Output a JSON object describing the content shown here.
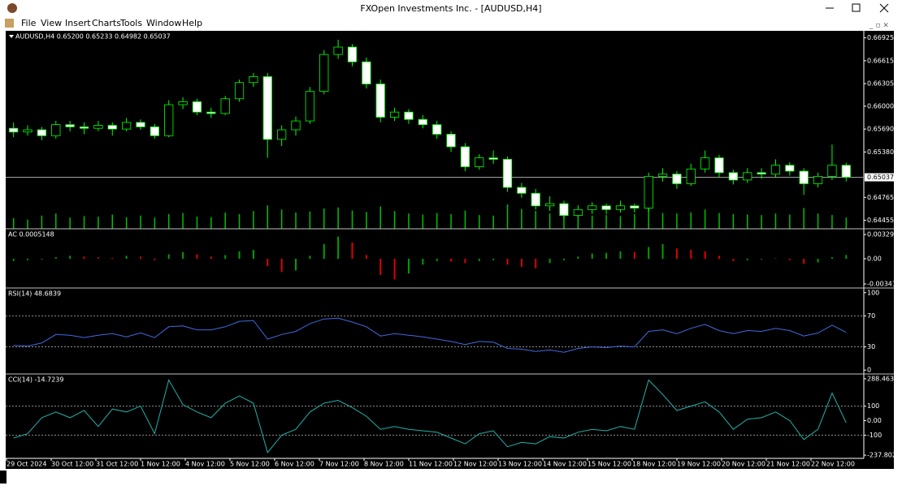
{
  "window": {
    "title": "FXOpen Investments Inc. - [AUDUSD,H4]"
  },
  "menu": [
    "File",
    "View",
    "Insert",
    "Charts",
    "Tools",
    "Window",
    "Help"
  ],
  "chart": {
    "header": "AUDUSD,H4  0.65200 0.65233 0.64982 0.65037",
    "ylim": [
      0.6434,
      0.6702
    ],
    "yticks": [
      0.66925,
      0.66615,
      0.66305,
      {
        "value": 0.66,
        "label": "0.66000"
      },
      {
        "value": 0.6569,
        "label": "0.65690"
      },
      {
        "value": 0.6538,
        "label": "0.65380"
      },
      0.64765,
      0.64455
    ],
    "current_price": 0.65037,
    "bull_color": "#000000",
    "bear_color": "#ffffff",
    "wick_color": "#00ff00",
    "volume_color": "#00c000",
    "candles": {
      "open": [
        0.657,
        0.6565,
        0.6568,
        0.656,
        0.6575,
        0.6572,
        0.657,
        0.6574,
        0.6569,
        0.6578,
        0.6572,
        0.656,
        0.6602,
        0.6606,
        0.6592,
        0.659,
        0.661,
        0.6632,
        0.664,
        0.6555,
        0.6568,
        0.658,
        0.662,
        0.667,
        0.668,
        0.666,
        0.663,
        0.6585,
        0.6592,
        0.6582,
        0.6575,
        0.6562,
        0.6545,
        0.6518,
        0.653,
        0.6528,
        0.649,
        0.6482,
        0.6465,
        0.6468,
        0.6452,
        0.646,
        0.6465,
        0.646,
        0.6465,
        0.6462,
        0.6505,
        0.6508,
        0.6495,
        0.6515,
        0.653,
        0.651,
        0.65,
        0.651,
        0.6508,
        0.652,
        0.6512,
        0.6495,
        0.6505,
        0.652
      ],
      "high": [
        0.6578,
        0.6574,
        0.6572,
        0.658,
        0.658,
        0.6578,
        0.658,
        0.6578,
        0.6584,
        0.6582,
        0.6576,
        0.6608,
        0.6612,
        0.661,
        0.6598,
        0.6614,
        0.6636,
        0.6645,
        0.6645,
        0.6574,
        0.6586,
        0.6626,
        0.6676,
        0.669,
        0.6684,
        0.6666,
        0.6636,
        0.6598,
        0.6596,
        0.6588,
        0.658,
        0.6566,
        0.655,
        0.6535,
        0.654,
        0.6532,
        0.6496,
        0.6488,
        0.6478,
        0.6472,
        0.6466,
        0.647,
        0.6468,
        0.6472,
        0.6468,
        0.651,
        0.6516,
        0.6512,
        0.6522,
        0.654,
        0.6534,
        0.6514,
        0.6516,
        0.6516,
        0.6528,
        0.6524,
        0.6516,
        0.651,
        0.6548,
        0.65233
      ],
      "low": [
        0.6558,
        0.656,
        0.6554,
        0.6556,
        0.6566,
        0.6562,
        0.6566,
        0.656,
        0.6566,
        0.6568,
        0.6556,
        0.6558,
        0.6596,
        0.6588,
        0.6584,
        0.6588,
        0.6606,
        0.6626,
        0.653,
        0.6546,
        0.656,
        0.6576,
        0.6616,
        0.6664,
        0.6654,
        0.6624,
        0.6578,
        0.658,
        0.6576,
        0.657,
        0.6556,
        0.6538,
        0.6512,
        0.6514,
        0.6522,
        0.6484,
        0.6476,
        0.646,
        0.6458,
        0.6448,
        0.645,
        0.6454,
        0.6454,
        0.6456,
        0.6456,
        0.6458,
        0.6498,
        0.6488,
        0.6492,
        0.651,
        0.6504,
        0.6494,
        0.6496,
        0.6502,
        0.6504,
        0.6506,
        0.648,
        0.649,
        0.65,
        0.64982
      ],
      "close": [
        0.6565,
        0.6568,
        0.656,
        0.6575,
        0.6572,
        0.657,
        0.6574,
        0.6569,
        0.6578,
        0.6572,
        0.656,
        0.6602,
        0.6606,
        0.6592,
        0.659,
        0.661,
        0.6632,
        0.664,
        0.6555,
        0.6568,
        0.658,
        0.662,
        0.667,
        0.668,
        0.666,
        0.663,
        0.6585,
        0.6592,
        0.6582,
        0.6575,
        0.6562,
        0.6545,
        0.6518,
        0.653,
        0.6528,
        0.649,
        0.6482,
        0.6465,
        0.6468,
        0.6452,
        0.646,
        0.6465,
        0.646,
        0.6465,
        0.6462,
        0.6505,
        0.6508,
        0.6495,
        0.6515,
        0.653,
        0.651,
        0.65,
        0.651,
        0.6508,
        0.652,
        0.6512,
        0.6495,
        0.6505,
        0.652,
        0.65037
      ],
      "volume": [
        2100,
        1800,
        2600,
        3000,
        2200,
        2500,
        2400,
        2800,
        2300,
        2600,
        2200,
        2900,
        3100,
        2400,
        2300,
        3200,
        2900,
        3500,
        4600,
        3800,
        3200,
        3400,
        4000,
        4200,
        3600,
        3300,
        4400,
        3500,
        3000,
        2800,
        3100,
        2900,
        3600,
        2700,
        2600,
        4800,
        3900,
        3500,
        3000,
        3700,
        2800,
        2600,
        2700,
        2500,
        2900,
        4300,
        3100,
        3000,
        3200,
        3800,
        3100,
        2900,
        2800,
        2700,
        3000,
        2800,
        4100,
        3000,
        2700,
        2200
      ]
    },
    "x_labels": [
      "29 Oct 2024",
      "30 Oct 12:00",
      "31 Oct 12:00",
      "1 Nov 12:00",
      "4 Nov 12:00",
      "5 Nov 12:00",
      "6 Nov 12:00",
      "7 Nov 12:00",
      "8 Nov 12:00",
      "11 Nov 12:00",
      "12 Nov 12:00",
      "13 Nov 12:00",
      "14 Nov 12:00",
      "15 Nov 12:00",
      "18 Nov 12:00",
      "19 Nov 12:00",
      "20 Nov 12:00",
      "21 Nov 12:00",
      "22 Nov 12:00"
    ]
  },
  "ac": {
    "label": "AC 0.0005148",
    "ylim": [
      -0.00386,
      0.00396
    ],
    "yticks": [
      0.003295,
      {
        "value": 0,
        "label": "0.00"
      },
      -0.003416
    ],
    "up_color": "#00a000",
    "down_color": "#e00000",
    "values": [
      -0.0003,
      -0.0002,
      -0.0001,
      0.0002,
      0.0004,
      0.0003,
      0.0002,
      0.0001,
      0.0004,
      0.0003,
      -0.0002,
      0.0006,
      0.0009,
      0.0006,
      0.0003,
      0.0005,
      0.001,
      0.0012,
      -0.001,
      -0.0018,
      -0.0016,
      0.0004,
      0.002,
      0.003,
      0.0022,
      0.0005,
      -0.0022,
      -0.0028,
      -0.002,
      -0.0008,
      -0.0003,
      -0.0004,
      -0.0006,
      -0.0003,
      -0.0002,
      -0.0008,
      -0.0011,
      -0.0013,
      -0.0006,
      -0.0002,
      0.0003,
      0.0007,
      0.0008,
      0.001,
      0.0009,
      0.0016,
      0.002,
      0.0014,
      0.0012,
      0.001,
      0.0004,
      -0.0003,
      -0.0002,
      -0.0001,
      0.0,
      -0.0002,
      -0.0007,
      -0.0005,
      0.0002,
      0.0005148
    ]
  },
  "rsi": {
    "label": "RSI(14) 48.6839",
    "ylim": [
      -4,
      105
    ],
    "yticks": [
      100,
      70,
      30,
      0
    ],
    "levels": [
      70,
      30
    ],
    "color": "#4169e1",
    "values": [
      32,
      31,
      35,
      46,
      45,
      42,
      45,
      47,
      43,
      48,
      42,
      56,
      57,
      52,
      52,
      56,
      63,
      64,
      40,
      46,
      50,
      60,
      66,
      67,
      62,
      56,
      44,
      47,
      45,
      43,
      40,
      37,
      33,
      37,
      36,
      28,
      27,
      24,
      26,
      23,
      28,
      30,
      29,
      31,
      30,
      50,
      52,
      47,
      54,
      59,
      51,
      47,
      51,
      50,
      54,
      51,
      44,
      48,
      58,
      48.6839
    ]
  },
  "cci": {
    "label": "CCI(14) -14.7239",
    "ylim": [
      -260,
      316
    ],
    "yticks": [
      288.4631,
      100,
      {
        "value": 0,
        "label": "0.00"
      },
      -100,
      -237.8024
    ],
    "levels": [
      100,
      -100
    ],
    "color": "#20b2aa",
    "values": [
      -120,
      -90,
      20,
      60,
      20,
      70,
      -40,
      80,
      60,
      100,
      -90,
      280,
      110,
      60,
      20,
      120,
      170,
      120,
      -220,
      -100,
      -60,
      60,
      120,
      140,
      90,
      30,
      -60,
      -40,
      -60,
      -70,
      -80,
      -120,
      -160,
      -90,
      -70,
      -180,
      -150,
      -160,
      -110,
      -120,
      -80,
      -60,
      -70,
      -40,
      -60,
      280,
      180,
      70,
      100,
      130,
      60,
      -60,
      10,
      20,
      60,
      0,
      -130,
      -60,
      190,
      -14.7239
    ]
  }
}
